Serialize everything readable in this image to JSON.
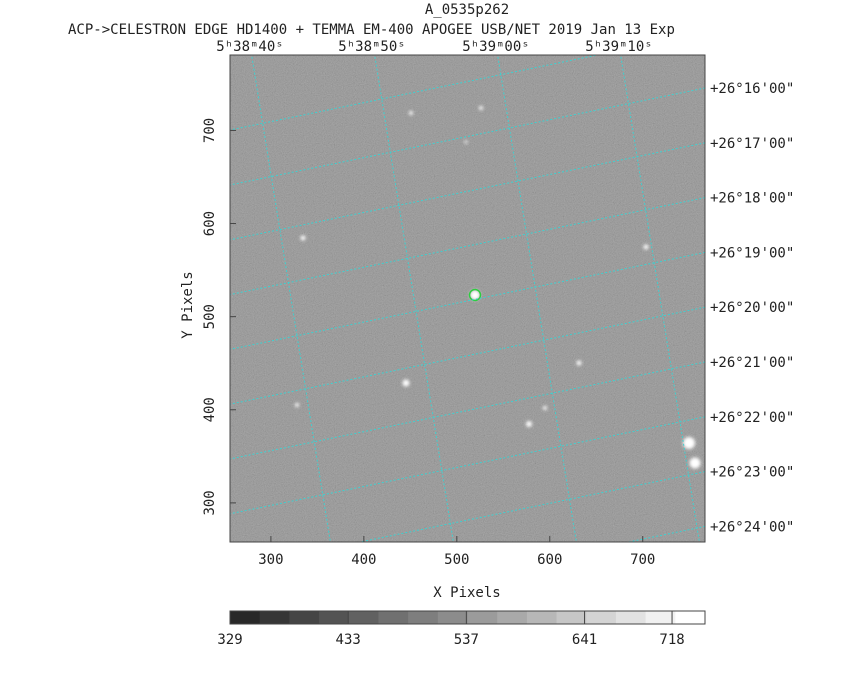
{
  "chart_data": {
    "type": "image",
    "title": "A_0535p262",
    "subtitle": "ACP->CELESTRON EDGE HD1400 + TEMMA EM-400 APOGEE USB/NET   2019 Jan 13    Exp",
    "x_label": "X Pixels",
    "y_label": "Y Pixels",
    "xlim": [
      256,
      767
    ],
    "ylim": [
      258,
      781
    ],
    "xticks": [
      300,
      400,
      500,
      600,
      700
    ],
    "yticks": [
      300,
      400,
      500,
      600,
      700
    ],
    "ra_labels": [
      "5ʰ38ᵐ40ˢ",
      "5ʰ38ᵐ50ˢ",
      "5ʰ39ᵐ00ˢ",
      "5ʰ39ᵐ10ˢ"
    ],
    "dec_labels": [
      "+26°16'00\"",
      "+26°17'00\"",
      "+26°18'00\"",
      "+26°19'00\"",
      "+26°20'00\"",
      "+26°21'00\"",
      "+26°22'00\"",
      "+26°23'00\"",
      "+26°24'00\""
    ],
    "grid_color": "#3fd0d0",
    "colorbar_lim": [
      329,
      747
    ],
    "colorbar_ticks": [
      329,
      433,
      537,
      641,
      718
    ]
  }
}
